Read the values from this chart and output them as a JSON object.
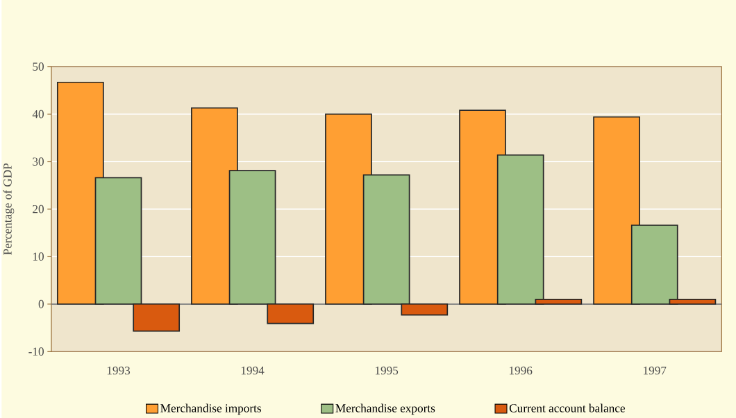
{
  "chart_data": {
    "type": "bar",
    "ylabel": "Percentage of GDP",
    "categories": [
      "1993",
      "1994",
      "1995",
      "1996",
      "1997"
    ],
    "series": [
      {
        "name": "Merchandise imports",
        "color": "#ff9f33",
        "values": [
          46.7,
          41.3,
          40.0,
          40.8,
          39.4
        ]
      },
      {
        "name": "Merchandise exports",
        "color": "#9dbf85",
        "values": [
          26.6,
          28.1,
          27.2,
          31.4,
          16.6
        ]
      },
      {
        "name": "Current account balance",
        "color": "#d95a0f",
        "values": [
          -5.7,
          -4.1,
          -2.3,
          1.0,
          1.0
        ]
      }
    ],
    "ylim": [
      -10,
      50
    ],
    "yticks": [
      -10,
      0,
      10,
      20,
      30,
      40,
      50
    ],
    "grid": "y",
    "legend": "bottom"
  }
}
